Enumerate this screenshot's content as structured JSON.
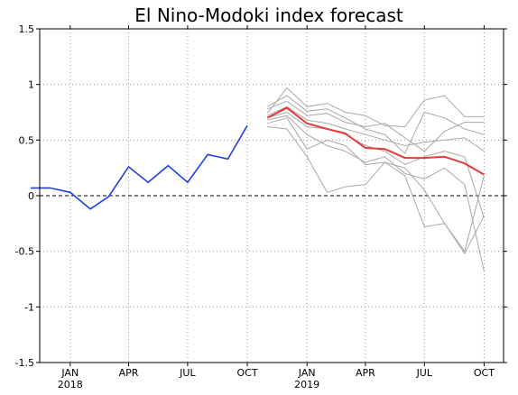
{
  "chart_data": {
    "type": "line",
    "title": "El Nino-Modoki index forecast",
    "xlabel": "",
    "ylabel": "",
    "ylim": [
      -1.5,
      1.5
    ],
    "yticks": [
      -1.5,
      -1,
      -0.5,
      0,
      0.5,
      1,
      1.5
    ],
    "ytick_labels": [
      "-1.5",
      "-1",
      "-0.5",
      "0",
      "0.5",
      "1",
      "1.5"
    ],
    "xlim": [
      "2017-11-15",
      "2019-10-31"
    ],
    "xticks": [
      {
        "date": "2018-01",
        "label": "JAN",
        "year": "2018"
      },
      {
        "date": "2018-04",
        "label": "APR",
        "year": ""
      },
      {
        "date": "2018-07",
        "label": "JUL",
        "year": ""
      },
      {
        "date": "2018-10",
        "label": "OCT",
        "year": ""
      },
      {
        "date": "2019-01",
        "label": "JAN",
        "year": "2019"
      },
      {
        "date": "2019-04",
        "label": "APR",
        "year": ""
      },
      {
        "date": "2019-07",
        "label": "JUL",
        "year": ""
      },
      {
        "date": "2019-10",
        "label": "OCT",
        "year": ""
      }
    ],
    "grid": true,
    "zero_line": "dashed",
    "colors": {
      "observed": "#1f3fd6",
      "ensemble_mean": "#e63b3b",
      "members": "#a8a8a8"
    },
    "observed": {
      "x": [
        "2017-11",
        "2017-12",
        "2018-01",
        "2018-02",
        "2018-03",
        "2018-04",
        "2018-05",
        "2018-06",
        "2018-07",
        "2018-08",
        "2018-09",
        "2018-10"
      ],
      "y": [
        0.07,
        0.07,
        0.03,
        -0.12,
        -0.01,
        0.26,
        0.12,
        0.27,
        0.12,
        0.37,
        0.33,
        0.63
      ]
    },
    "ensemble_mean": {
      "x": [
        "2018-11",
        "2018-12",
        "2019-01",
        "2019-02",
        "2019-03",
        "2019-04",
        "2019-05",
        "2019-06",
        "2019-07",
        "2019-08",
        "2019-09",
        "2019-10"
      ],
      "y": [
        0.7,
        0.79,
        0.65,
        0.6,
        0.56,
        0.43,
        0.42,
        0.34,
        0.34,
        0.35,
        0.29,
        0.19
      ]
    },
    "members": [
      {
        "x": [
          "2018-11",
          "2018-12",
          "2019-01",
          "2019-02",
          "2019-03",
          "2019-04",
          "2019-05",
          "2019-06",
          "2019-07",
          "2019-08",
          "2019-09",
          "2019-10"
        ],
        "y": [
          0.74,
          0.97,
          0.8,
          0.83,
          0.75,
          0.72,
          0.63,
          0.62,
          0.86,
          0.9,
          0.71,
          0.71
        ]
      },
      {
        "x": [
          "2018-11",
          "2018-12",
          "2019-01",
          "2019-02",
          "2019-03",
          "2019-04",
          "2019-05",
          "2019-06",
          "2019-07",
          "2019-08",
          "2019-09",
          "2019-10"
        ],
        "y": [
          0.8,
          0.9,
          0.76,
          0.78,
          0.7,
          0.6,
          0.55,
          0.38,
          0.75,
          0.7,
          0.6,
          0.55
        ]
      },
      {
        "x": [
          "2018-11",
          "2018-12",
          "2019-01",
          "2019-02",
          "2019-03",
          "2019-04",
          "2019-05",
          "2019-06",
          "2019-07",
          "2019-08",
          "2019-09",
          "2019-10"
        ],
        "y": [
          0.78,
          0.85,
          0.72,
          0.74,
          0.66,
          0.62,
          0.65,
          0.52,
          0.4,
          0.58,
          0.66,
          0.66
        ]
      },
      {
        "x": [
          "2018-11",
          "2018-12",
          "2019-01",
          "2019-02",
          "2019-03",
          "2019-04",
          "2019-05",
          "2019-06",
          "2019-07",
          "2019-08",
          "2019-09",
          "2019-10"
        ],
        "y": [
          0.72,
          0.8,
          0.68,
          0.65,
          0.6,
          0.55,
          0.5,
          0.45,
          0.48,
          0.5,
          0.52,
          0.4
        ]
      },
      {
        "x": [
          "2018-11",
          "2018-12",
          "2019-01",
          "2019-02",
          "2019-03",
          "2019-04",
          "2019-05",
          "2019-06",
          "2019-07",
          "2019-08",
          "2019-09",
          "2019-10"
        ],
        "y": [
          0.7,
          0.75,
          0.62,
          0.6,
          0.55,
          0.45,
          0.4,
          0.28,
          0.35,
          0.4,
          0.35,
          -0.2
        ]
      },
      {
        "x": [
          "2018-11",
          "2018-12",
          "2019-01",
          "2019-02",
          "2019-03",
          "2019-04",
          "2019-05",
          "2019-06",
          "2019-07",
          "2019-08",
          "2019-09",
          "2019-10"
        ],
        "y": [
          0.68,
          0.72,
          0.55,
          0.45,
          0.4,
          0.3,
          0.35,
          0.2,
          0.15,
          0.25,
          0.1,
          -0.68
        ]
      },
      {
        "x": [
          "2018-11",
          "2018-12",
          "2019-01",
          "2019-02",
          "2019-03",
          "2019-04",
          "2019-05",
          "2019-06",
          "2019-07",
          "2019-08",
          "2019-09",
          "2019-10"
        ],
        "y": [
          0.65,
          0.7,
          0.42,
          0.5,
          0.45,
          0.28,
          0.3,
          0.25,
          0.05,
          -0.25,
          -0.5,
          0.18
        ]
      },
      {
        "x": [
          "2018-11",
          "2018-12",
          "2019-01",
          "2019-02",
          "2019-03",
          "2019-04",
          "2019-05",
          "2019-06",
          "2019-07",
          "2019-08",
          "2019-09",
          "2019-10"
        ],
        "y": [
          0.62,
          0.6,
          0.35,
          0.03,
          0.08,
          0.1,
          0.3,
          0.18,
          -0.28,
          -0.25,
          -0.52,
          -0.18
        ]
      }
    ]
  }
}
